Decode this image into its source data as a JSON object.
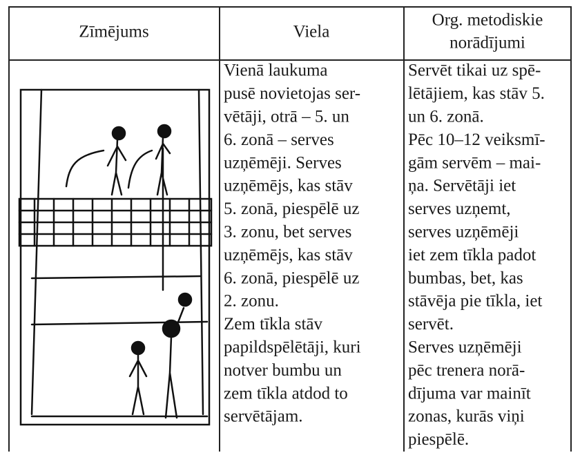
{
  "table": {
    "header": [
      "Zīmējums",
      "Viela",
      [
        "Org. metodiskie",
        "norādījumi"
      ]
    ],
    "rows": [
      [
        null,
        {
          "lines": [
            "Vienā laukuma",
            "pusē novietojas ser-",
            "vētāji, otrā – 5. un",
            "6. zonā – serves",
            "uzņēmēji. Serves",
            "uzņēmējs, kas stāv",
            "5. zonā, piespēlē uz",
            "3. zonu, bet serves",
            "uzņēmējs, kas stāv",
            "6. zonā, piespēlē uz",
            "2. zonu.",
            "Zem tīkla stāv",
            "papildspēlētāji, kuri",
            "notver bumbu un",
            "zem tīkla atdod to",
            "servētājam."
          ]
        },
        {
          "lines": [
            "Servēt tikai uz spē-",
            "lētājiem, kas stāv 5.",
            "un 6. zonā.",
            "Pēc 10–12 veiksmī-",
            "gām servēm – mai-",
            "ņa. Servētāji iet",
            "serves uzņemt,",
            "serves uzņēmēji",
            "iet zem tīkla padot",
            "bumbas, bet, kas",
            "stāvēja pie tīkla, iet",
            "servēt.",
            "Serves uzņēmēji",
            "pēc trenera norā-",
            "dījuma var mainīt",
            "zonas, kurās viņi",
            "piespēlē."
          ]
        }
      ]
    ]
  }
}
